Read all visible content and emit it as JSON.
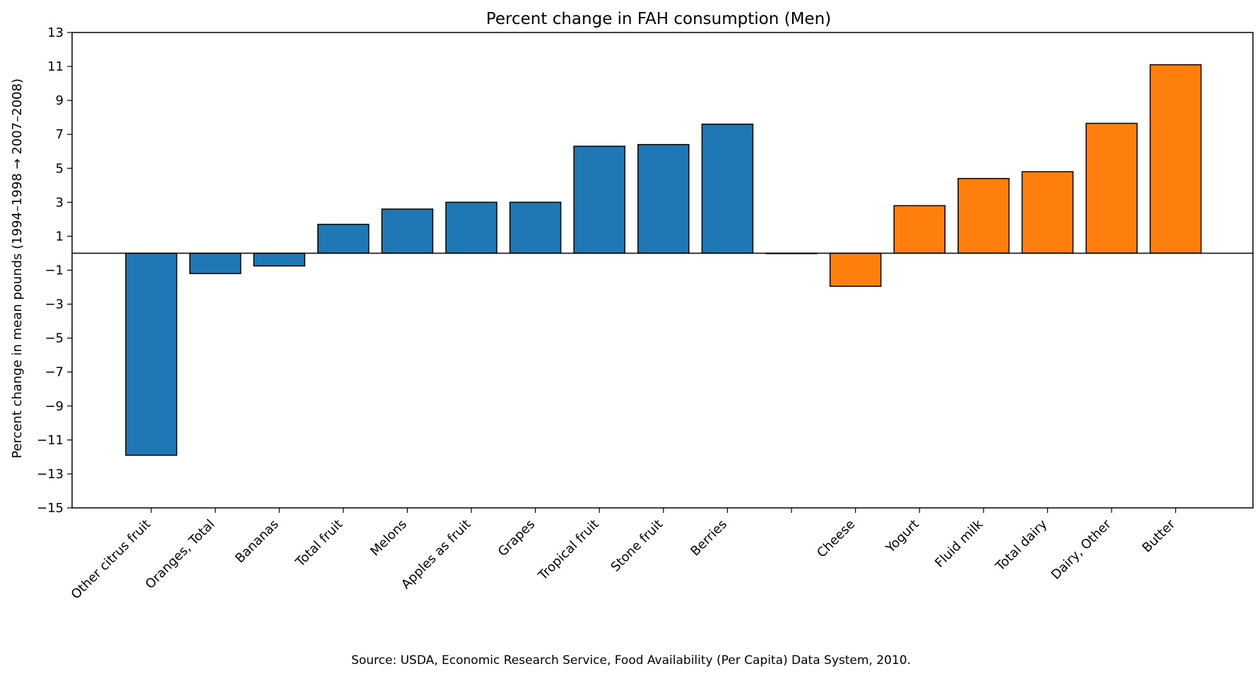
{
  "chart_data": {
    "type": "bar",
    "title": "Percent change in FAH consumption (Men)",
    "xlabel": "",
    "ylabel": "Percent change in mean pounds (1994–1998 → 2007–2008)",
    "source": "Source: USDA, Economic Research Service, Food Availability (Per Capita) Data System, 2010.",
    "ylim": [
      -15,
      13
    ],
    "yticks": [
      -15,
      -13,
      -11,
      -9,
      -7,
      -5,
      -3,
      -1,
      1,
      3,
      5,
      7,
      9,
      11,
      13
    ],
    "grid": false,
    "legend": "none",
    "categories": [
      "Other citrus fruit",
      "Oranges, Total",
      "Bananas",
      "Total fruit",
      "Melons",
      "Apples as fruit",
      "Grapes",
      "Tropical fruit",
      "Stone fruit",
      "Berries",
      "",
      "Cheese",
      "Yogurt",
      "Fluid milk",
      "Total dairy",
      "Dairy, Other",
      "Butter"
    ],
    "values": [
      -11.9,
      -1.2,
      -0.75,
      1.7,
      2.6,
      3.0,
      3.0,
      6.3,
      6.4,
      7.6,
      0,
      -1.95,
      2.8,
      4.4,
      4.8,
      7.65,
      11.1
    ],
    "groups": [
      "fruit",
      "fruit",
      "fruit",
      "fruit",
      "fruit",
      "fruit",
      "fruit",
      "fruit",
      "fruit",
      "fruit",
      "gap",
      "dairy",
      "dairy",
      "dairy",
      "dairy",
      "dairy",
      "dairy"
    ],
    "colors": {
      "fruit": "#1f77b4",
      "dairy": "#ff7f0e",
      "gap": "#1f77b4",
      "edge": "#000000"
    }
  }
}
